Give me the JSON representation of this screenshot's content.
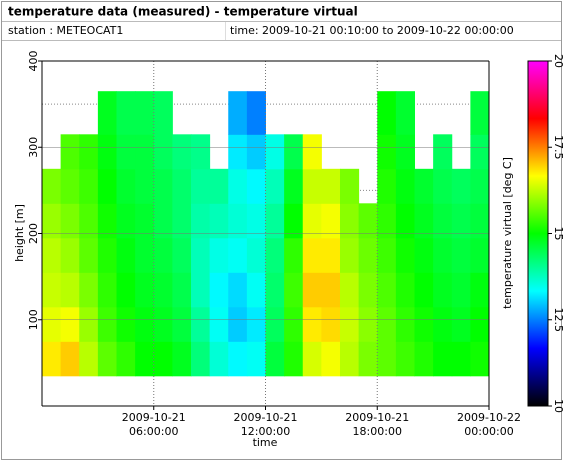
{
  "chart_data": {
    "type": "heatmap",
    "title": "temperature data (measured) - temperature virtual",
    "station": "station : METEOCAT1",
    "time_range": "time: 2009-10-21 00:10:00 to 2009-10-22 00:00:00",
    "xlabel": "time",
    "ylabel": "height [m]",
    "zlabel": "temperature virtual [deg C]",
    "x": [
      "2009-10-21T00:00:00",
      "2009-10-21T01:00:00",
      "2009-10-21T02:00:00",
      "2009-10-21T03:00:00",
      "2009-10-21T04:00:00",
      "2009-10-21T05:00:00",
      "2009-10-21T06:00:00",
      "2009-10-21T07:00:00",
      "2009-10-21T08:00:00",
      "2009-10-21T09:00:00",
      "2009-10-21T10:00:00",
      "2009-10-21T11:00:00",
      "2009-10-21T12:00:00",
      "2009-10-21T13:00:00",
      "2009-10-21T14:00:00",
      "2009-10-21T15:00:00",
      "2009-10-21T16:00:00",
      "2009-10-21T17:00:00",
      "2009-10-21T18:00:00",
      "2009-10-21T19:00:00",
      "2009-10-21T20:00:00",
      "2009-10-21T21:00:00",
      "2009-10-21T22:00:00",
      "2009-10-21T23:00:00"
    ],
    "xlim": [
      "2009-10-21T00:00:00",
      "2009-10-22T00:00:00"
    ],
    "xticks": [
      {
        "value": "2009-10-21T06:00:00",
        "label": "2009-10-21\n06:00:00"
      },
      {
        "value": "2009-10-21T12:00:00",
        "label": "2009-10-21\n12:00:00"
      },
      {
        "value": "2009-10-21T18:00:00",
        "label": "2009-10-21\n18:00:00"
      },
      {
        "value": "2009-10-22T00:00:00",
        "label": "2009-10-22\n00:00:00"
      }
    ],
    "y_bins": [
      35,
      75,
      115,
      155,
      195,
      235,
      275,
      315,
      365
    ],
    "ylim": [
      0,
      400
    ],
    "yticks": [
      100,
      200,
      300,
      400
    ],
    "y_minor_grid": [
      50,
      150,
      250,
      350
    ],
    "grid": true,
    "values": [
      [
        16.8,
        16.5,
        16.3,
        16.2,
        16.0,
        15.8,
        null,
        null
      ],
      [
        17.0,
        16.6,
        16.2,
        16.0,
        15.8,
        15.6,
        15.5,
        null
      ],
      [
        16.2,
        16.0,
        15.8,
        15.6,
        15.5,
        15.4,
        15.3,
        null
      ],
      [
        15.6,
        15.4,
        15.3,
        15.2,
        15.1,
        15.0,
        14.9,
        14.8
      ],
      [
        15.3,
        15.1,
        15.0,
        14.9,
        14.8,
        14.7,
        14.6,
        14.5
      ],
      [
        15.0,
        14.9,
        14.8,
        14.7,
        14.7,
        14.6,
        14.6,
        14.5
      ],
      [
        15.0,
        14.8,
        14.7,
        14.6,
        14.5,
        14.5,
        14.4,
        14.4
      ],
      [
        14.8,
        14.6,
        14.5,
        14.4,
        14.3,
        14.3,
        14.2,
        null
      ],
      [
        14.2,
        14.0,
        13.8,
        13.8,
        13.9,
        14.0,
        14.1,
        null
      ],
      [
        13.6,
        13.4,
        13.3,
        13.5,
        13.8,
        14.0,
        null,
        null
      ],
      [
        13.3,
        13.0,
        13.1,
        13.4,
        13.6,
        13.5,
        13.2,
        12.8
      ],
      [
        13.4,
        13.2,
        13.4,
        13.6,
        13.5,
        13.3,
        13.0,
        12.5
      ],
      [
        14.6,
        14.4,
        14.3,
        14.2,
        14.0,
        13.8,
        13.5,
        null
      ],
      [
        15.2,
        15.3,
        15.4,
        15.3,
        15.0,
        14.8,
        14.5,
        null
      ],
      [
        16.4,
        16.8,
        17.0,
        16.8,
        16.5,
        16.3,
        16.6,
        null
      ],
      [
        16.6,
        16.9,
        17.0,
        16.8,
        16.6,
        16.3,
        null,
        null
      ],
      [
        16.2,
        16.3,
        16.2,
        16.0,
        15.9,
        15.8,
        null,
        null
      ],
      [
        15.8,
        15.9,
        15.8,
        15.7,
        15.6,
        null,
        null,
        null
      ],
      [
        15.6,
        15.6,
        15.5,
        15.4,
        15.3,
        15.2,
        15.1,
        15.0
      ],
      [
        15.4,
        15.3,
        15.2,
        15.1,
        15.0,
        14.9,
        14.8,
        14.7
      ],
      [
        15.2,
        15.1,
        15.0,
        14.9,
        14.8,
        14.7,
        null,
        null
      ],
      [
        15.0,
        14.9,
        14.8,
        14.7,
        14.6,
        14.5,
        14.4,
        null
      ],
      [
        15.0,
        14.8,
        14.7,
        14.6,
        14.5,
        14.4,
        null,
        null
      ],
      [
        15.1,
        15.0,
        14.9,
        14.7,
        14.6,
        14.5,
        14.4,
        14.6
      ]
    ],
    "zlim": [
      10,
      20
    ],
    "zticks": [
      10,
      12.5,
      15,
      17.5,
      20
    ],
    "colorscale": [
      "#000000",
      "#0000ff",
      "#00ffff",
      "#00ff00",
      "#ffff00",
      "#ff0000",
      "#ff00ff"
    ]
  }
}
